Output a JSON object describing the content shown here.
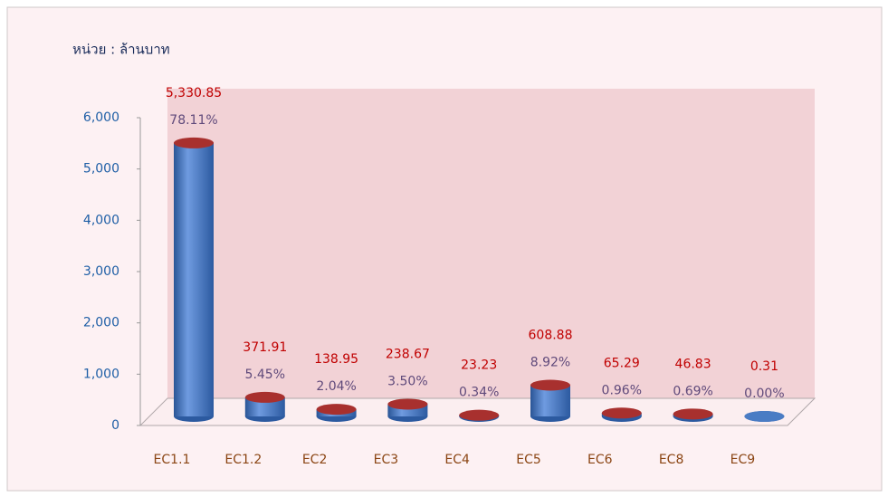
{
  "chart_data": {
    "type": "bar",
    "unit_label": "หน่วย : ล้านบาท",
    "categories": [
      "EC1.1",
      "EC1.2",
      "EC2",
      "EC3",
      "EC4",
      "EC5",
      "EC6",
      "EC8",
      "EC9"
    ],
    "values": [
      5330.85,
      371.91,
      138.95,
      238.67,
      23.23,
      608.88,
      65.29,
      46.83,
      0.31
    ],
    "value_labels": [
      "5,330.85",
      "371.91",
      "138.95",
      "238.67",
      "23.23",
      "608.88",
      "65.29",
      "46.83",
      "0.31"
    ],
    "share_labels": [
      "78.11%",
      "5.45%",
      "2.04%",
      "3.50%",
      "0.34%",
      "8.92%",
      "0.96%",
      "0.69%",
      "0.00%"
    ],
    "color": "#4a7cc4",
    "top_color": "#a8302e",
    "ylim": [
      0,
      6000
    ],
    "yticks": [
      0,
      {
        "value": 1000,
        "label": "1,000"
      },
      {
        "value": 2000,
        "label": "2,000"
      },
      {
        "value": 3000,
        "label": "3,000"
      },
      {
        "value": 4000,
        "label": "4,000"
      },
      {
        "value": 5000,
        "label": "5,000"
      },
      {
        "value": 6000,
        "label": "6,000"
      }
    ]
  }
}
